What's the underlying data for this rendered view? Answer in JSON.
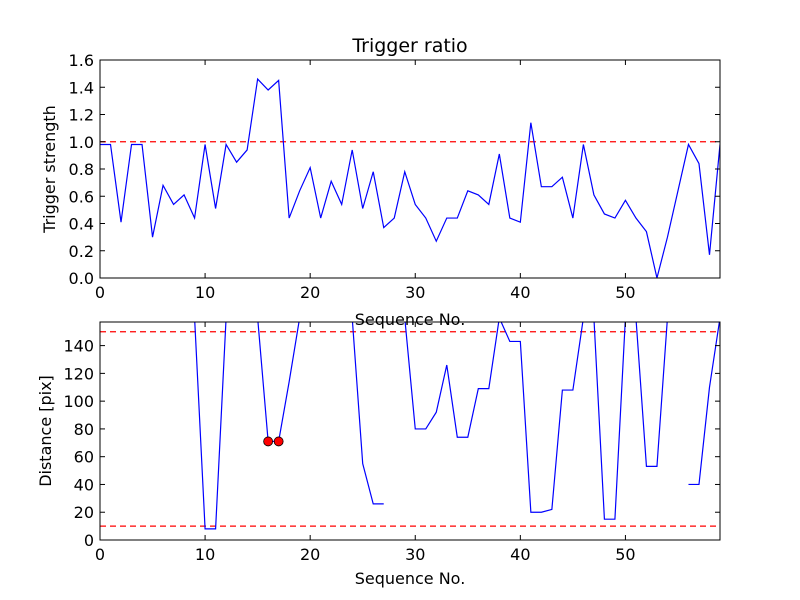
{
  "chart_data": [
    {
      "type": "line",
      "title": "Trigger ratio",
      "xlabel": "Sequence No.",
      "ylabel": "Trigger strength",
      "xlim": [
        0,
        59
      ],
      "ylim": [
        0,
        1.6
      ],
      "xticks": [
        0,
        10,
        20,
        30,
        40,
        50
      ],
      "yticks": [
        0.0,
        0.2,
        0.4,
        0.6,
        0.8,
        1.0,
        1.2,
        1.4,
        1.6
      ],
      "ytick_labels": [
        "0.0",
        "0.2",
        "0.4",
        "0.6",
        "0.8",
        "1.0",
        "1.2",
        "1.4",
        "1.6"
      ],
      "line_color": "#0000ff",
      "threshold_color": "#ff0000",
      "thresholds": [
        1.0
      ],
      "grid": false,
      "x": [
        0,
        1,
        2,
        3,
        4,
        5,
        6,
        7,
        8,
        9,
        10,
        11,
        12,
        13,
        14,
        15,
        16,
        17,
        18,
        19,
        20,
        21,
        22,
        23,
        24,
        25,
        26,
        27,
        28,
        29,
        30,
        31,
        32,
        33,
        34,
        35,
        36,
        37,
        38,
        39,
        40,
        41,
        42,
        43,
        44,
        45,
        46,
        47,
        48,
        49,
        50,
        51,
        52,
        53,
        54,
        55,
        56,
        57,
        58,
        59
      ],
      "values": [
        0.98,
        0.98,
        0.41,
        0.98,
        0.98,
        0.3,
        0.68,
        0.54,
        0.61,
        0.44,
        0.98,
        0.51,
        0.98,
        0.85,
        0.94,
        1.46,
        1.38,
        1.45,
        0.44,
        0.64,
        0.81,
        0.44,
        0.71,
        0.54,
        0.94,
        0.51,
        0.78,
        0.37,
        0.44,
        0.78,
        0.54,
        0.44,
        0.27,
        0.44,
        0.44,
        0.64,
        0.61,
        0.54,
        0.91,
        0.44,
        0.41,
        1.14,
        0.67,
        0.67,
        0.74,
        0.44,
        0.98,
        0.61,
        0.47,
        0.44,
        0.57,
        0.44,
        0.34,
        0.0,
        0.3,
        0.64,
        0.98,
        0.84,
        0.17,
        0.98
      ]
    },
    {
      "type": "line",
      "xlabel": "Sequence No.",
      "ylabel": "Distance [pix]",
      "xlim": [
        0,
        59
      ],
      "ylim": [
        0,
        157
      ],
      "xticks": [
        0,
        10,
        20,
        30,
        40,
        50
      ],
      "yticks": [
        0,
        20,
        40,
        60,
        80,
        100,
        120,
        140
      ],
      "line_color": "#0000ff",
      "threshold_color": "#ff0000",
      "marker_color": "#ff0000",
      "thresholds": [
        150,
        10
      ],
      "grid": false,
      "x": [
        9,
        10,
        11,
        12,
        15,
        16,
        17,
        18,
        19,
        24,
        25,
        26,
        27,
        29,
        30,
        31,
        32,
        33,
        34,
        35,
        36,
        37,
        38,
        39,
        40,
        41,
        42,
        43,
        44,
        45,
        46,
        47,
        48,
        49,
        50,
        51,
        52,
        53,
        54,
        56,
        57,
        58,
        59
      ],
      "values": [
        160,
        8,
        8,
        160,
        160,
        71,
        71,
        114,
        160,
        160,
        55,
        26,
        26,
        160,
        80,
        80,
        92,
        126,
        74,
        74,
        109,
        109,
        160,
        143,
        143,
        20,
        20,
        22,
        108,
        108,
        160,
        160,
        15,
        15,
        160,
        160,
        53,
        53,
        160,
        40,
        40,
        110,
        160
      ],
      "segment_breaks_after_x": [
        12,
        19,
        27,
        54
      ],
      "markers": {
        "x": [
          16,
          17
        ],
        "y": [
          71,
          71
        ]
      }
    }
  ]
}
